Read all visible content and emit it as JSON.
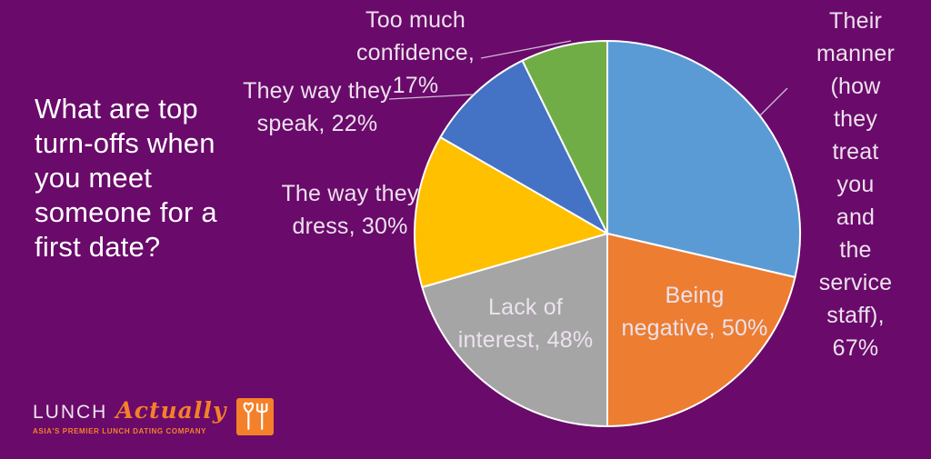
{
  "title": "What are top\nturn-offs when\nyou meet\nsomeone for a\nfirst date?",
  "chart_data": {
    "type": "pie",
    "title": "What are top turn-offs when you meet someone for a first date?",
    "categories": [
      "Their manner (how they treat you and the service staff)",
      "Being negative",
      "Lack of interest",
      "The way they dress",
      "They way they speak",
      "Too much confidence"
    ],
    "values": [
      67,
      50,
      48,
      30,
      22,
      17
    ],
    "unit": "%",
    "colors": [
      "#5B9BD5",
      "#ED7D31",
      "#A5A5A5",
      "#FFC000",
      "#4472C4",
      "#70AD47"
    ],
    "slugs": [
      "their-manner",
      "being-negative",
      "lack-of-interest",
      "the-way-they-dress",
      "they-way-they-speak",
      "too-much-confidence"
    ],
    "start_angle_deg": 0,
    "direction": "clockwise",
    "legend_position": "none",
    "label_style": "category-name-and-percent"
  },
  "labels": {
    "their_manner": "Their manner\n(how they\ntreat you and\nthe service\nstaff), 67%",
    "being_negative": "Being\nnegative, 50%",
    "lack_of_interest": "Lack of\ninterest, 48%",
    "the_way_they_dress": "The way they\ndress, 30%",
    "they_way_they_speak": "They way they\nspeak, 22%",
    "too_much_confidence": "Too much\nconfidence,\n17%"
  },
  "logo": {
    "brand_primary": "LUNCH",
    "brand_script": "Actually",
    "tagline": "ASIA'S PREMIER LUNCH DATING COMPANY"
  },
  "colors": {
    "background": "#6a0a6a",
    "title_text": "#ffffff",
    "label_text": "#ece2ee",
    "slice_stroke": "#ffffff",
    "leader_line": "#cdbad4",
    "logo_accent": "#f4802a",
    "logo_primary_text": "#eee4ee"
  }
}
